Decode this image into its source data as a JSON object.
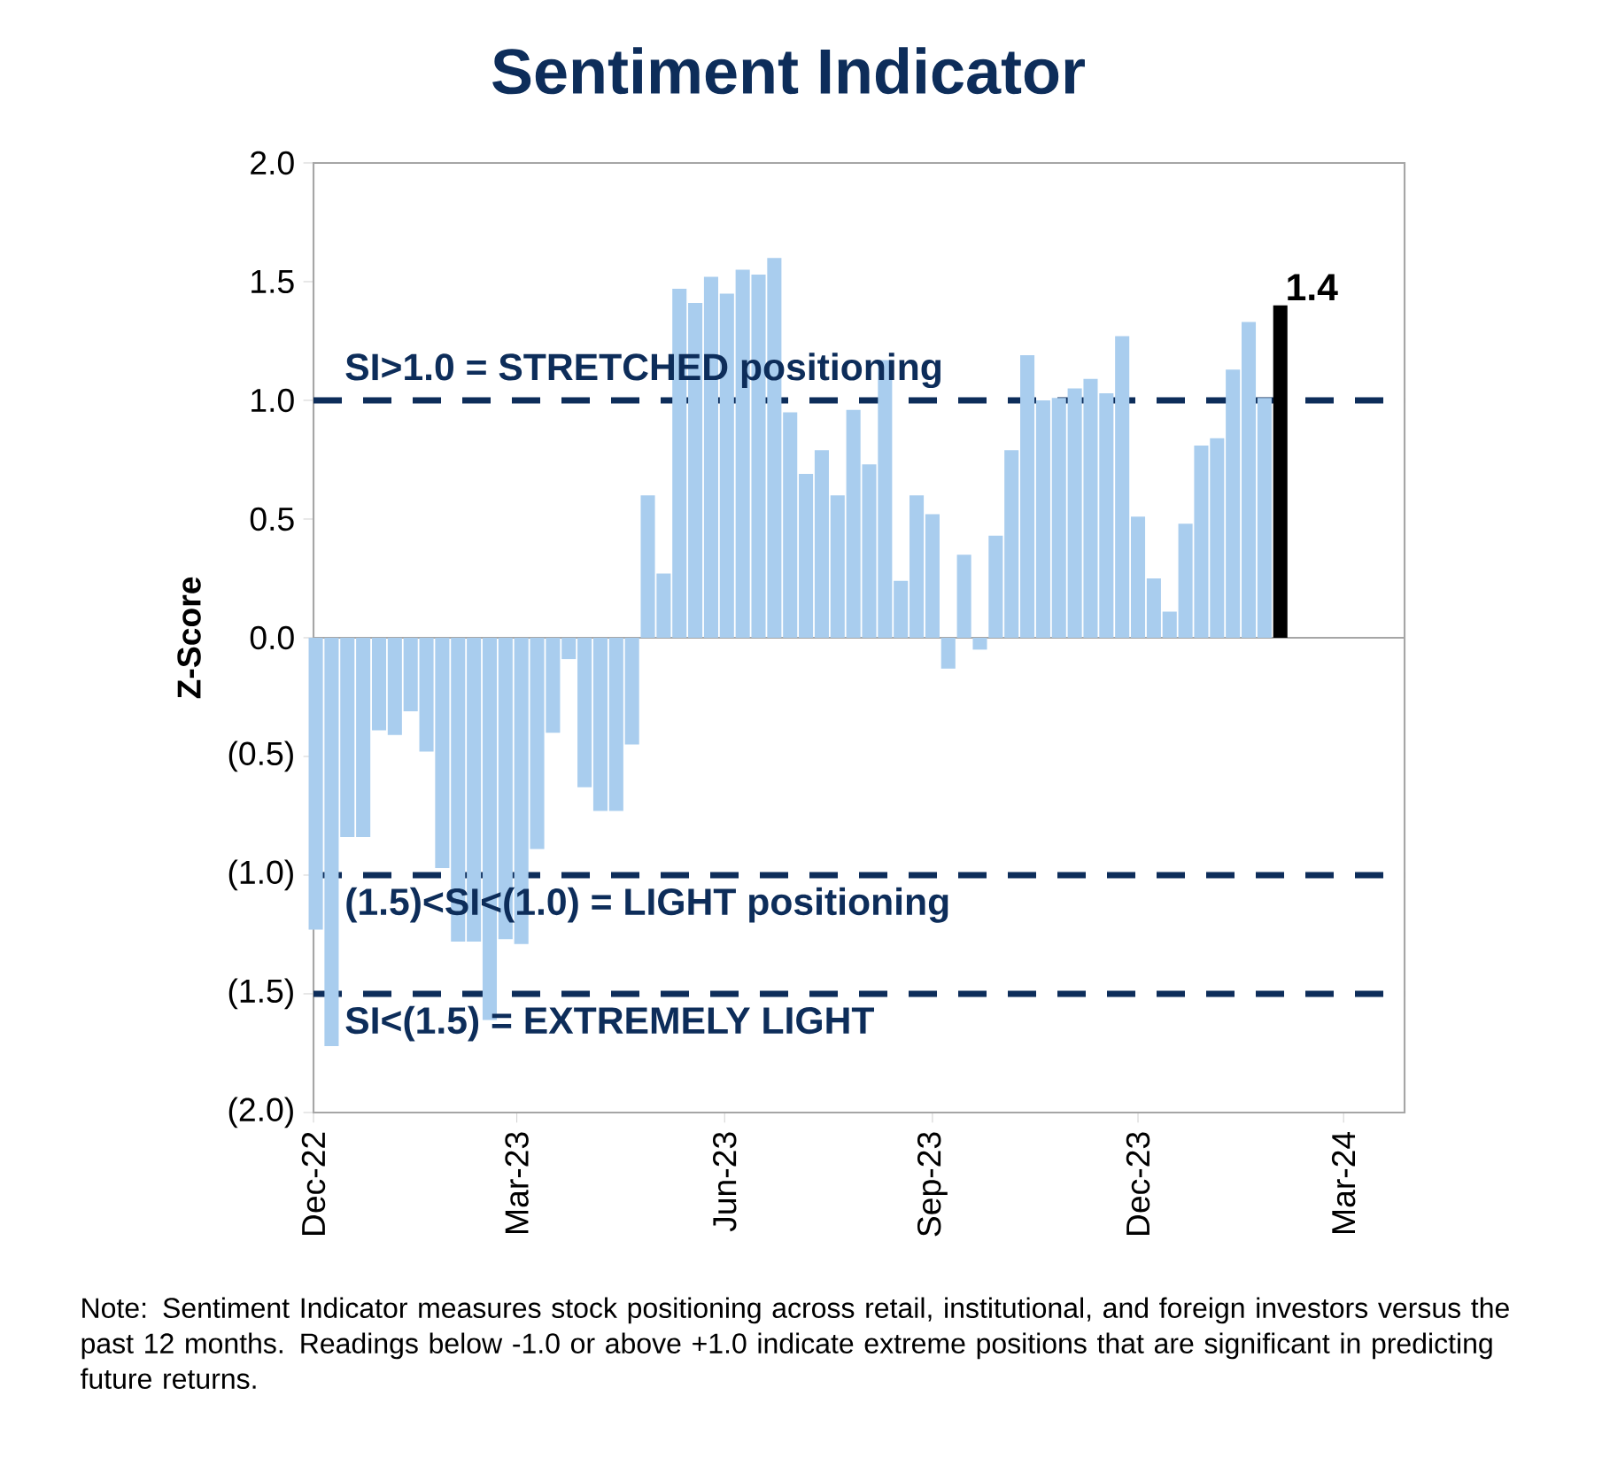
{
  "chart_data": {
    "type": "bar",
    "title": "Sentiment Indicator",
    "ylabel": "Z-Score",
    "annotations": [
      "Note: Sentiment Indicator measures stock positioning across retail, institutional, and foreign investors versus the past 12 months. Readings below -1.0 or above +1.0 indicate extreme positions that are significant in predicting future returns."
    ],
    "x": [
      "2022-12-02",
      "2022-12-09",
      "2022-12-16",
      "2022-12-23",
      "2022-12-30",
      "2023-01-06",
      "2023-01-13",
      "2023-01-20",
      "2023-01-27",
      "2023-02-03",
      "2023-02-10",
      "2023-02-17",
      "2023-02-24",
      "2023-03-03",
      "2023-03-10",
      "2023-03-17",
      "2023-03-24",
      "2023-03-31",
      "2023-04-07",
      "2023-04-14",
      "2023-04-21",
      "2023-04-28",
      "2023-05-05",
      "2023-05-12",
      "2023-05-19",
      "2023-05-26",
      "2023-06-02",
      "2023-06-09",
      "2023-06-16",
      "2023-06-23",
      "2023-06-30",
      "2023-07-07",
      "2023-07-14",
      "2023-07-21",
      "2023-07-28",
      "2023-08-04",
      "2023-08-11",
      "2023-08-18",
      "2023-08-25",
      "2023-09-01",
      "2023-09-08",
      "2023-09-15",
      "2023-09-22",
      "2023-09-29",
      "2023-10-06",
      "2023-10-13",
      "2023-10-20",
      "2023-10-27",
      "2023-11-03",
      "2023-11-10",
      "2023-11-17",
      "2023-11-24",
      "2023-12-01",
      "2023-12-08",
      "2023-12-15",
      "2023-12-22",
      "2023-12-29",
      "2024-01-05",
      "2024-01-12",
      "2024-01-19",
      "2024-01-26",
      "2024-02-02"
    ],
    "values": [
      -1.23,
      -1.72,
      -0.84,
      -0.84,
      -0.39,
      -0.41,
      -0.31,
      -0.48,
      -0.97,
      -1.28,
      -1.28,
      -1.61,
      -1.27,
      -1.29,
      -0.89,
      -0.4,
      -0.09,
      -0.63,
      -0.73,
      -0.73,
      -0.45,
      0.6,
      0.27,
      1.47,
      1.41,
      1.52,
      1.45,
      1.55,
      1.53,
      1.6,
      0.95,
      0.69,
      0.79,
      0.6,
      0.96,
      0.73,
      1.17,
      0.24,
      0.6,
      0.52,
      -0.13,
      0.35,
      -0.05,
      0.43,
      0.79,
      1.19,
      1.0,
      1.01,
      1.05,
      1.09,
      1.03,
      1.27,
      0.51,
      0.25,
      0.11,
      0.48,
      0.81,
      0.84,
      1.13,
      1.33,
      1.01,
      1.4
    ],
    "colors": [
      "#a9cdee",
      "#a9cdee",
      "#a9cdee",
      "#a9cdee",
      "#a9cdee",
      "#a9cdee",
      "#a9cdee",
      "#a9cdee",
      "#a9cdee",
      "#a9cdee",
      "#a9cdee",
      "#a9cdee",
      "#a9cdee",
      "#a9cdee",
      "#a9cdee",
      "#a9cdee",
      "#a9cdee",
      "#a9cdee",
      "#a9cdee",
      "#a9cdee",
      "#a9cdee",
      "#a9cdee",
      "#a9cdee",
      "#a9cdee",
      "#a9cdee",
      "#a9cdee",
      "#a9cdee",
      "#a9cdee",
      "#a9cdee",
      "#a9cdee",
      "#a9cdee",
      "#a9cdee",
      "#a9cdee",
      "#a9cdee",
      "#a9cdee",
      "#a9cdee",
      "#a9cdee",
      "#a9cdee",
      "#a9cdee",
      "#a9cdee",
      "#a9cdee",
      "#a9cdee",
      "#a9cdee",
      "#a9cdee",
      "#a9cdee",
      "#a9cdee",
      "#a9cdee",
      "#a9cdee",
      "#a9cdee",
      "#a9cdee",
      "#a9cdee",
      "#a9cdee",
      "#a9cdee",
      "#a9cdee",
      "#a9cdee",
      "#a9cdee",
      "#a9cdee",
      "#a9cdee",
      "#a9cdee",
      "#a9cdee",
      "#a9cdee",
      "#000000"
    ],
    "value_labels": [
      null,
      null,
      null,
      null,
      null,
      null,
      null,
      null,
      null,
      null,
      null,
      null,
      null,
      null,
      null,
      null,
      null,
      null,
      null,
      null,
      null,
      null,
      null,
      null,
      null,
      null,
      null,
      null,
      null,
      null,
      null,
      null,
      null,
      null,
      null,
      null,
      null,
      null,
      null,
      null,
      null,
      null,
      null,
      null,
      null,
      null,
      null,
      null,
      null,
      null,
      null,
      null,
      null,
      null,
      null,
      null,
      null,
      null,
      null,
      null,
      null,
      "1.4"
    ],
    "xlim": [
      "2022-12-01",
      "2024-03-28"
    ],
    "xticks": [
      {
        "value": "2022-12-01",
        "label": "Dec-22"
      },
      {
        "value": "2023-03-01",
        "label": "Mar-23"
      },
      {
        "value": "2023-06-01",
        "label": "Jun-23"
      },
      {
        "value": "2023-09-01",
        "label": "Sep-23"
      },
      {
        "value": "2023-12-01",
        "label": "Dec-23"
      },
      {
        "value": "2024-03-01",
        "label": "Mar-24"
      }
    ],
    "ylim": [
      -2,
      2
    ],
    "yticks": [
      {
        "value": 2,
        "label": "2.0"
      },
      {
        "value": 1.5,
        "label": "1.5"
      },
      {
        "value": 1,
        "label": "1.0"
      },
      {
        "value": 0.5,
        "label": "0.5"
      },
      {
        "value": 0,
        "label": "0.0"
      },
      {
        "value": -0.5,
        "label": "(0.5)"
      },
      {
        "value": -1,
        "label": "(1.0)"
      },
      {
        "value": -1.5,
        "label": "(1.5)"
      },
      {
        "value": -2,
        "label": "(2.0)"
      }
    ],
    "ref_lines": [
      {
        "axis": "y",
        "value": 1,
        "label": "SI>1.0 = STRETCHED positioning",
        "color": "#0d2d5a",
        "line_style": "dashed"
      },
      {
        "axis": "y",
        "value": -1,
        "label": "(1.5)<SI<(1.0) = LIGHT positioning",
        "color": "#0d2d5a",
        "line_style": "dashed"
      },
      {
        "axis": "y",
        "value": -1.5,
        "label": "SI<(1.5) = EXTREMELY LIGHT",
        "color": "#0d2d5a",
        "line_style": "dashed"
      }
    ]
  }
}
